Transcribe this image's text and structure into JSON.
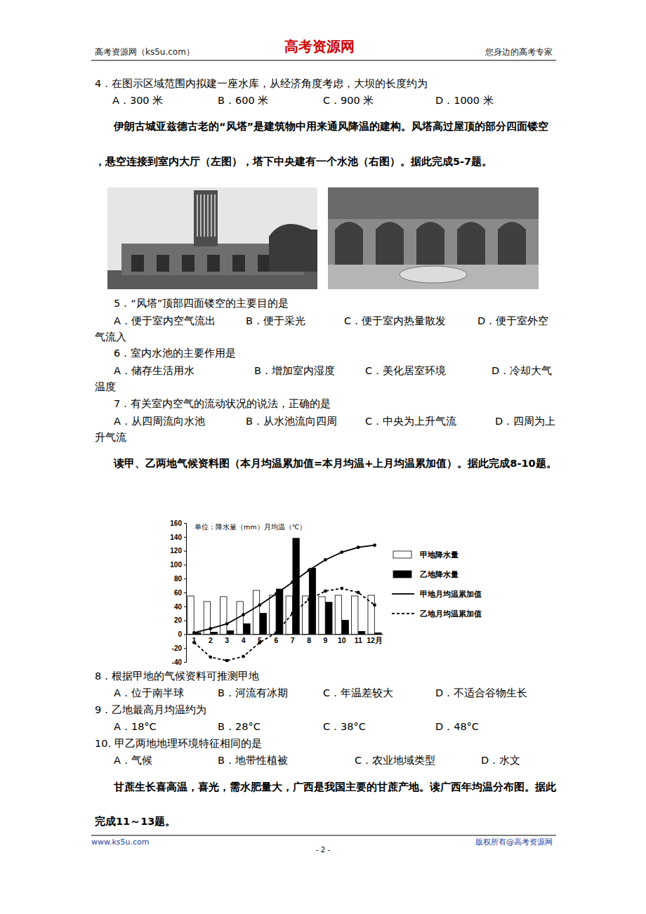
{
  "header": {
    "left": "高考资源网（ks5u.com）",
    "center": "高考资源网",
    "right": "您身边的高考专家"
  },
  "items": [
    {
      "stem": "4．在图示区域范围内拟建一座水库，从经济角度考虑，大坝的长度约为",
      "options": [
        "A．300 米",
        "B．600 米",
        "C．900 米",
        "D．1000 米"
      ]
    },
    {
      "passage": "伊朗古城亚兹德古老的“风塔”是建筑物中用来通风降温的建构。风塔高过屋顶的部分四面镂空，悬空连接到室内大厅（左图），塔下中央建有一个水池（右图）。据此完成5-7题。"
    },
    {
      "stem": "5．“风塔”顶部四面镂空的主要目的是",
      "options": [
        "A．便于室内空气流出",
        "B．便于采光",
        "C．便于室内热量散发",
        "D．便于室外空气流入"
      ]
    },
    {
      "stem": "6．室内水池的主要作用是",
      "options": [
        "A．储存生活用水",
        "B．增加室内湿度",
        "C．美化居室环境",
        "D．冷却大气温度"
      ]
    },
    {
      "stem": "7．有关室内空气的流动状况的说法，正确的是",
      "options": [
        "A．从四周流向水池",
        "B．从水池流向四周",
        "C．中央为上升气流",
        "D．四周为上升气流"
      ]
    },
    {
      "passage": "读甲、乙两地气候资料图（本月均温累加值=本月均温+上月均温累加值）。据此完成8-10题。"
    },
    {
      "stem": "8．根据甲地的气候资料可推测甲地",
      "options": [
        "A．位于南半球",
        "B．河流有冰期",
        "C．年温差较大",
        "D．不适合谷物生长"
      ]
    },
    {
      "stem": "9．乙地最高月均温约为",
      "options": [
        "A．18°C",
        "B．28°C",
        "C．38°C",
        "D．48°C"
      ]
    },
    {
      "stem": "10. 甲乙两地地理环境特征相同的是",
      "options": [
        "A．气候",
        "B．地带性植被",
        "C．农业地域类型",
        "D．水文"
      ]
    },
    {
      "passage": "甘蔗生长喜高温，喜光，需水肥量大，广西是我国主要的甘蔗产地。读广西年均温分布图。据此完成11～13题。"
    }
  ],
  "chart_data": {
    "type": "bar",
    "annotations": [
      "单位：降水量（mm）月均温（℃）"
    ],
    "categories": [
      "1",
      "2",
      "3",
      "4",
      "5",
      "6",
      "7",
      "8",
      "9",
      "10",
      "11",
      "12月"
    ],
    "series": [
      {
        "name": "甲地降水量",
        "type": "bar",
        "color": "#ffffff",
        "values": [
          55,
          47,
          54,
          47,
          63,
          56,
          55,
          55,
          54,
          56,
          55,
          56
        ]
      },
      {
        "name": "乙地降水量",
        "type": "bar",
        "color": "#000000",
        "values": [
          2,
          3,
          5,
          15,
          30,
          65,
          138,
          95,
          46,
          20,
          4,
          2
        ]
      },
      {
        "name": "甲地月均温累加值",
        "type": "line",
        "color": "#000000",
        "line_style": "solid",
        "marker": "circle",
        "values": [
          2,
          8,
          15,
          28,
          42,
          58,
          75,
          92,
          107,
          118,
          125,
          128
        ]
      },
      {
        "name": "乙地月均温累加值",
        "type": "line",
        "color": "#000000",
        "line_style": "dashed",
        "marker": "circle",
        "values": [
          -12,
          -33,
          -38,
          -32,
          -12,
          2,
          30,
          50,
          62,
          66,
          60,
          42
        ]
      }
    ],
    "ylim": [
      -40,
      160
    ],
    "yticks": [
      -40,
      -20,
      0,
      20,
      40,
      60,
      80,
      100,
      120,
      140,
      160
    ],
    "grid": false,
    "legend": "right"
  },
  "footer": {
    "left": "www.ks5u.com",
    "page": "- 2 -",
    "right": "版权所有@高考资源网"
  }
}
